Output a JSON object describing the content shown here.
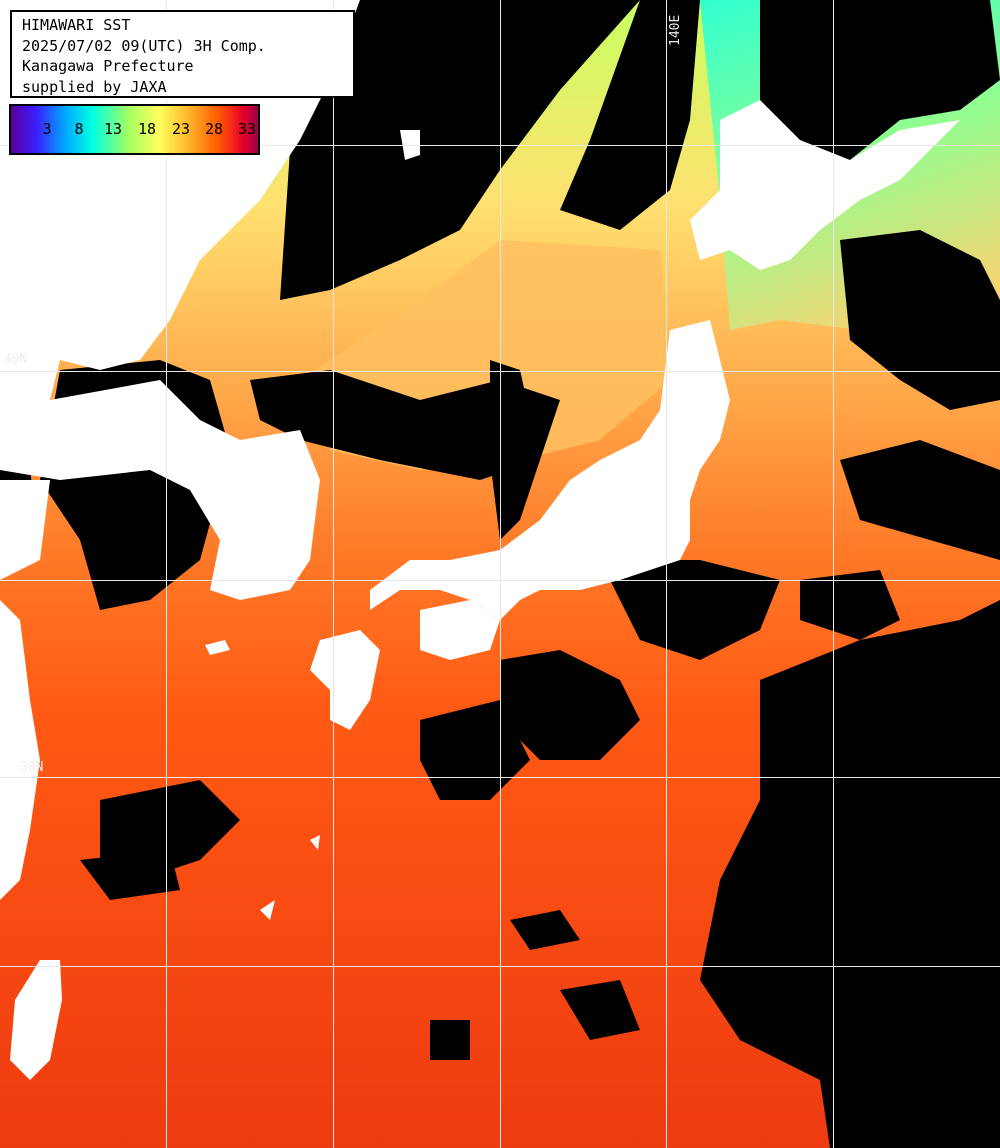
{
  "info": {
    "title": "HIMAWARI SST",
    "datetime": "2025/07/02 09(UTC) 3H Comp.",
    "organization": "Kanagawa Prefecture",
    "supplier": "supplied by JAXA"
  },
  "legend": {
    "ticks": [
      "3",
      "8",
      "13",
      "18",
      "23",
      "28",
      "33"
    ]
  },
  "grid_labels": {
    "lon_140e": "140E",
    "lat_40n": "40N",
    "lat_30n": "30N"
  },
  "colors": {
    "land": "#ffffff",
    "cloud": "#000000",
    "warm_sea": "#ff5a14",
    "south_sea": "#ee3c10",
    "north_sea": "#ffaa55",
    "cold_sea": "#60ffb0",
    "grid": "#e8e8e8"
  }
}
